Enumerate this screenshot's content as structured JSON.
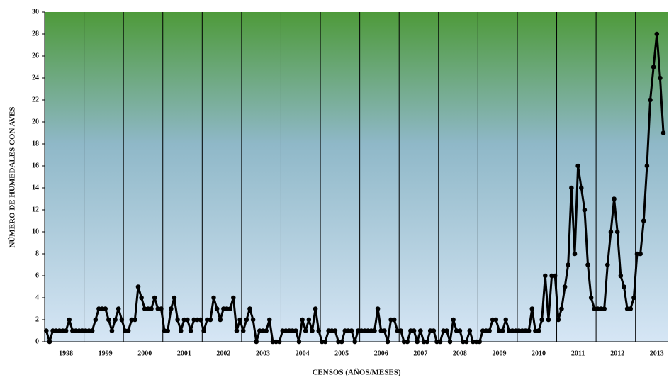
{
  "chart_data": {
    "type": "line",
    "x_label": "CENSOS (AÑOS/MESES)",
    "y_label": "NÚMERO DE HUMEDALES CON AVES",
    "color": "#000000",
    "ylim": [
      0,
      30
    ],
    "yticks": [
      0,
      2,
      4,
      6,
      8,
      10,
      12,
      14,
      16,
      18,
      20,
      22,
      24,
      26,
      28,
      30
    ],
    "categories": [
      null,
      null,
      null,
      null,
      null,
      null,
      "1998",
      null,
      null,
      null,
      null,
      null,
      null,
      null,
      null,
      null,
      null,
      null,
      "1999",
      null,
      null,
      null,
      null,
      null,
      null,
      null,
      null,
      null,
      null,
      null,
      "2000",
      null,
      null,
      null,
      null,
      null,
      null,
      null,
      null,
      null,
      null,
      null,
      "2001",
      null,
      null,
      null,
      null,
      null,
      null,
      null,
      null,
      null,
      null,
      null,
      "2002",
      null,
      null,
      null,
      null,
      null,
      null,
      null,
      null,
      null,
      null,
      null,
      "2003",
      null,
      null,
      null,
      null,
      null,
      null,
      null,
      null,
      null,
      null,
      null,
      "2004",
      null,
      null,
      null,
      null,
      null,
      null,
      null,
      null,
      null,
      null,
      null,
      "2005",
      null,
      null,
      null,
      null,
      null,
      null,
      null,
      null,
      null,
      null,
      null,
      "2006",
      null,
      null,
      null,
      null,
      null,
      null,
      null,
      null,
      null,
      null,
      null,
      "2007",
      null,
      null,
      null,
      null,
      null,
      null,
      null,
      null,
      null,
      null,
      null,
      "2008",
      null,
      null,
      null,
      null,
      null,
      null,
      null,
      null,
      null,
      null,
      null,
      "2009",
      null,
      null,
      null,
      null,
      null,
      null,
      null,
      null,
      null,
      null,
      null,
      "2010",
      null,
      null,
      null,
      null,
      null,
      null,
      null,
      null,
      null,
      null,
      null,
      "2011",
      null,
      null,
      null,
      null,
      null,
      null,
      null,
      null,
      null,
      null,
      null,
      "2012",
      null,
      null,
      null,
      null,
      null,
      null,
      null,
      null,
      null,
      null,
      null,
      "2013",
      null,
      null
    ],
    "values": [
      1,
      0,
      1,
      1,
      1,
      1,
      1,
      2,
      1,
      1,
      1,
      1,
      1,
      1,
      1,
      2,
      3,
      3,
      3,
      2,
      1,
      2,
      3,
      2,
      1,
      1,
      2,
      2,
      5,
      4,
      3,
      3,
      3,
      4,
      3,
      3,
      1,
      1,
      3,
      4,
      2,
      1,
      2,
      2,
      1,
      2,
      2,
      2,
      1,
      2,
      2,
      4,
      3,
      2,
      3,
      3,
      3,
      4,
      1,
      2,
      1,
      2,
      3,
      2,
      0,
      1,
      1,
      1,
      2,
      0,
      0,
      0,
      1,
      1,
      1,
      1,
      1,
      0,
      2,
      1,
      2,
      1,
      3,
      1,
      0,
      0,
      1,
      1,
      1,
      0,
      0,
      1,
      1,
      1,
      0,
      1,
      1,
      1,
      1,
      1,
      1,
      3,
      1,
      1,
      0,
      2,
      2,
      1,
      1,
      0,
      0,
      1,
      1,
      0,
      1,
      0,
      0,
      1,
      1,
      0,
      0,
      1,
      1,
      0,
      2,
      1,
      1,
      0,
      0,
      1,
      0,
      0,
      0,
      1,
      1,
      1,
      2,
      2,
      1,
      1,
      2,
      1,
      1,
      1,
      1,
      1,
      1,
      1,
      3,
      1,
      1,
      2,
      6,
      2,
      6,
      6,
      2,
      3,
      5,
      7,
      14,
      8,
      16,
      14,
      12,
      7,
      4,
      3,
      3,
      3,
      3,
      7,
      10,
      13,
      10,
      6,
      5,
      3,
      3,
      4,
      8,
      8,
      11,
      16,
      22,
      25,
      28,
      24,
      19
    ]
  }
}
